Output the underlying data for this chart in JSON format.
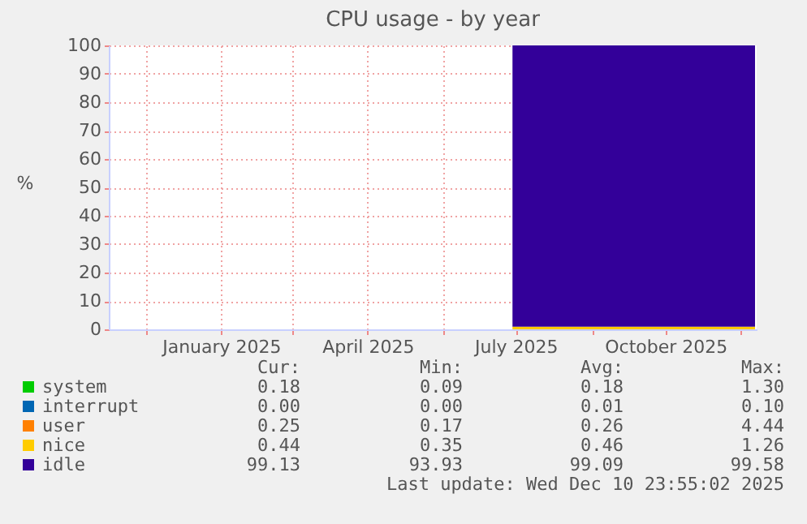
{
  "chart_data": {
    "type": "area",
    "title": "CPU usage - by year",
    "ylabel": "%",
    "stacked": true,
    "x": [
      "2025-07-14",
      "2025-12-10"
    ],
    "series": [
      {
        "name": "system",
        "color": "#00cc00",
        "values": [
          null,
          null
        ]
      },
      {
        "name": "interrupt",
        "color": "#0066b3",
        "values": [
          null,
          null
        ]
      },
      {
        "name": "user",
        "color": "#ff8000",
        "values": [
          null,
          null
        ]
      },
      {
        "name": "nice",
        "color": "#ffcc00",
        "values": [
          0.9,
          0.9
        ]
      },
      {
        "name": "idle",
        "color": "#330099",
        "values": [
          99.1,
          99.1
        ]
      }
    ],
    "xlim": [
      "2024-11-08",
      "2025-12-11"
    ],
    "xticks": [
      {
        "value": "2024-12-01",
        "label": null
      },
      {
        "value": "2025-01-16",
        "label": "January 2025"
      },
      {
        "value": "2025-03-01",
        "label": null
      },
      {
        "value": "2025-04-16",
        "label": "April 2025"
      },
      {
        "value": "2025-06-01",
        "label": null
      },
      {
        "value": "2025-07-16",
        "label": "July 2025"
      },
      {
        "value": "2025-09-01",
        "label": null
      },
      {
        "value": "2025-10-16",
        "label": "October 2025"
      },
      {
        "value": "2025-12-01",
        "label": null
      }
    ],
    "ylim": [
      0,
      100
    ],
    "yticks": [
      0,
      10,
      20,
      30,
      40,
      50,
      60,
      70,
      80,
      90,
      100
    ],
    "grid": true,
    "legend": "bottom",
    "annotations": [
      "Cur:",
      "Min:",
      "Avg:",
      "Max:",
      "0.18",
      "0.09",
      "0.18",
      "1.30",
      "0.00",
      "0.00",
      "0.01",
      "0.10",
      "0.25",
      "0.17",
      "0.26",
      "4.44",
      "0.44",
      "0.35",
      "0.46",
      "1.26",
      "99.13",
      "93.93",
      "99.09",
      "99.58",
      "Last update: Wed Dec 10 23:55:02 2025"
    ]
  }
}
